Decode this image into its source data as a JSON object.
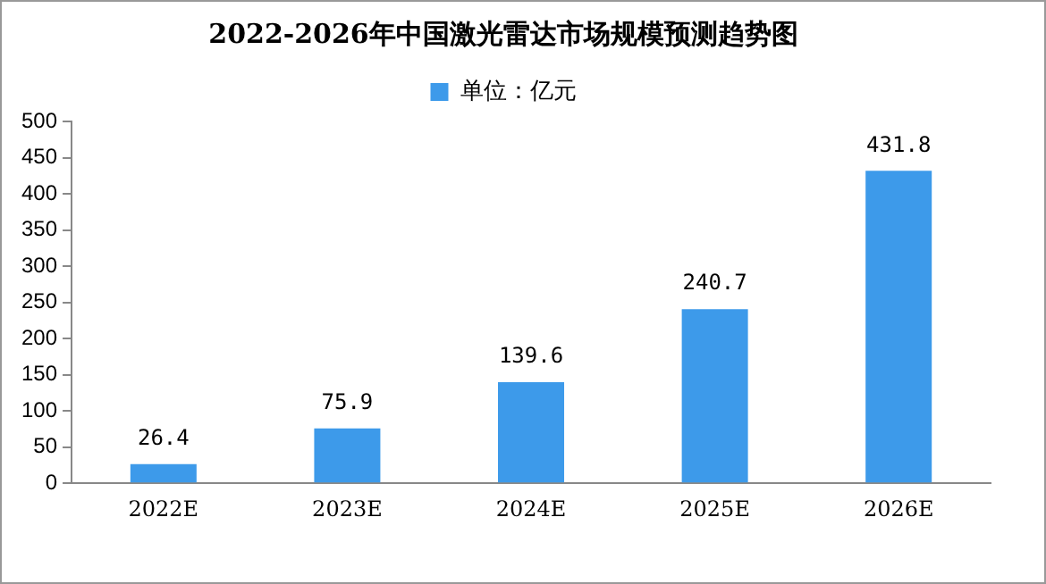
{
  "chart_data": {
    "type": "bar",
    "title": "2022-2026年中国激光雷达市场规模预测趋势图",
    "categories": [
      "2022E",
      "2023E",
      "2024E",
      "2025E",
      "2026E"
    ],
    "series": [
      {
        "name": "单位：亿元",
        "color": "#3d9aea",
        "values": [
          26.4,
          75.9,
          139.6,
          240.7,
          431.8
        ]
      }
    ],
    "ylim": [
      0,
      500
    ],
    "yticks": [
      0,
      50,
      100,
      150,
      200,
      250,
      300,
      350,
      400,
      450,
      500
    ],
    "grid": false,
    "legend": "top",
    "data_labels": true
  }
}
